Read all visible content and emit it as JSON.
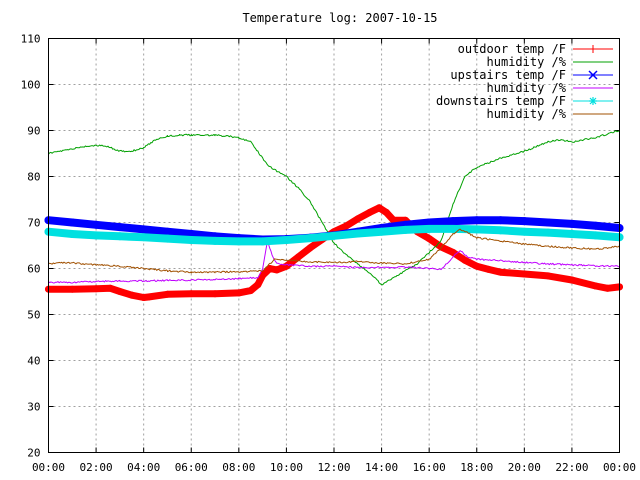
{
  "chart_data": {
    "type": "line",
    "title": "Temperature log: 2007-10-15",
    "xlabel": "",
    "ylabel": "",
    "x_tick_labels": [
      "00:00",
      "02:00",
      "04:00",
      "06:00",
      "08:00",
      "10:00",
      "12:00",
      "14:00",
      "16:00",
      "18:00",
      "20:00",
      "22:00",
      "00:00"
    ],
    "xlim": [
      0,
      24
    ],
    "ylim": [
      20,
      110
    ],
    "y_ticks": [
      20,
      30,
      40,
      50,
      60,
      70,
      80,
      90,
      100,
      110
    ],
    "grid": true,
    "legend_position": "top-right",
    "series": [
      {
        "name": "outdoor temp /F",
        "color": "#ff0000",
        "marker": "plus",
        "x": [
          0,
          1,
          2,
          2.6,
          3,
          3.5,
          4,
          4.2,
          5,
          6,
          7,
          8,
          8.5,
          8.8,
          9,
          9.3,
          9.6,
          10,
          10.5,
          11,
          11.5,
          12,
          12.5,
          13,
          13.5,
          13.9,
          14.2,
          14.5,
          15,
          15.5,
          16,
          16.5,
          17,
          17.5,
          18,
          18.5,
          19,
          20,
          21,
          22,
          23,
          23.5,
          24
        ],
        "values": [
          55.5,
          55.5,
          55.6,
          55.7,
          55,
          54.2,
          53.7,
          53.8,
          54.4,
          54.5,
          54.5,
          54.7,
          55.2,
          56.5,
          58.5,
          60,
          59.7,
          60.5,
          62.5,
          64.5,
          66.3,
          68,
          69.2,
          70.8,
          72.2,
          73.2,
          72.2,
          70.5,
          70.5,
          68,
          66.5,
          64.7,
          63.5,
          61.8,
          60.5,
          59.8,
          59.2,
          58.8,
          58.4,
          57.5,
          56.2,
          55.7,
          56
        ]
      },
      {
        "name": "humidity /%",
        "color": "#00a000",
        "marker": "line",
        "x": [
          0,
          1,
          1.5,
          2,
          2.5,
          3,
          3.5,
          4,
          4.5,
          5,
          5.5,
          6,
          7,
          8,
          8.5,
          9,
          9.2,
          9.5,
          10,
          10.5,
          11,
          11.5,
          12,
          12.5,
          13,
          13.5,
          14,
          14.5,
          15,
          15.5,
          16,
          16.5,
          17,
          17.5,
          18,
          19,
          20,
          21,
          21.5,
          22,
          23,
          24
        ],
        "values": [
          85,
          86,
          86.5,
          86.8,
          86.5,
          85.5,
          85.5,
          86.3,
          88,
          88.8,
          89,
          89,
          89,
          88.5,
          87.5,
          84,
          82.5,
          81.5,
          80,
          77.5,
          74.5,
          70,
          65.5,
          63,
          61,
          59,
          56.5,
          58,
          59.5,
          61,
          63.5,
          66,
          74,
          80,
          82,
          84,
          85.5,
          87.5,
          88,
          87.5,
          88.5,
          90
        ]
      },
      {
        "name": "upstairs temp /F",
        "color": "#0000ff",
        "marker": "x",
        "x": [
          0,
          1,
          2,
          3,
          4,
          5,
          6,
          7,
          8,
          9,
          10,
          11,
          12,
          13,
          14,
          15,
          16,
          17,
          18,
          19,
          20,
          21,
          22,
          23,
          24
        ],
        "values": [
          70.5,
          70,
          69.5,
          69,
          68.5,
          68,
          67.5,
          67,
          66.6,
          66.3,
          66.4,
          66.7,
          67.2,
          68,
          68.8,
          69.5,
          70,
          70.3,
          70.5,
          70.5,
          70.3,
          70,
          69.7,
          69.3,
          68.8
        ]
      },
      {
        "name": "humidity /%",
        "color": "#c000ff",
        "marker": "line",
        "x": [
          0,
          1,
          2,
          3,
          4,
          5,
          6,
          7,
          8,
          8.8,
          9,
          9.2,
          9.4,
          9.6,
          10,
          11,
          12,
          13,
          14,
          15,
          16,
          16.5,
          17,
          17.3,
          17.6,
          18,
          19,
          20,
          21,
          22,
          23,
          24
        ],
        "values": [
          57,
          57,
          57.2,
          57.3,
          57.3,
          57.4,
          57.5,
          57.6,
          57.8,
          58,
          60,
          66,
          63,
          61,
          60.8,
          60.5,
          60.5,
          60.2,
          60.3,
          60.3,
          60,
          59.8,
          62.5,
          64,
          62.5,
          62,
          61.7,
          61.3,
          61,
          60.8,
          60.6,
          60.5
        ]
      },
      {
        "name": "downstairs temp /F",
        "color": "#00e0e0",
        "marker": "star",
        "x": [
          0,
          1,
          2,
          3,
          4,
          5,
          6,
          7,
          8,
          9,
          10,
          11,
          12,
          13,
          14,
          15,
          16,
          17,
          18,
          19,
          20,
          21,
          22,
          23,
          24
        ],
        "values": [
          68,
          67.5,
          67.2,
          67,
          66.8,
          66.5,
          66.2,
          66,
          65.9,
          65.9,
          66.2,
          66.6,
          67.1,
          67.6,
          68,
          68.4,
          68.6,
          68.6,
          68.5,
          68.3,
          68,
          67.8,
          67.5,
          67.2,
          66.8
        ]
      },
      {
        "name": "humidity /%",
        "color": "#a05000",
        "marker": "line",
        "x": [
          0,
          0.5,
          1,
          2,
          3,
          4,
          5,
          6,
          7,
          8,
          9,
          9.5,
          10,
          11,
          12,
          13,
          14,
          15,
          16,
          16.5,
          17,
          17.3,
          17.6,
          18,
          19,
          20,
          21,
          22,
          23,
          24
        ],
        "values": [
          61,
          61.3,
          61.2,
          60.8,
          60.5,
          60,
          59.5,
          59.2,
          59.2,
          59.3,
          59.5,
          62,
          61.8,
          61.5,
          61.3,
          61.5,
          61.2,
          61,
          62,
          64.5,
          67.5,
          68.5,
          67.8,
          66.7,
          66,
          65.3,
          64.8,
          64.5,
          64.2,
          64.8
        ]
      }
    ]
  }
}
